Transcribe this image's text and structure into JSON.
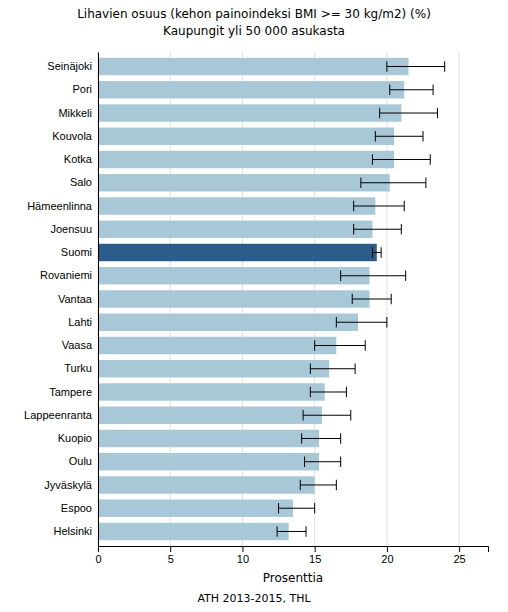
{
  "chart_data": {
    "type": "bar",
    "orientation": "horizontal",
    "title": "Lihavien osuus (kehon painoindeksi BMI >= 30 kg/m2) (%)",
    "subtitle": "Kaupungit yli 50 000 asukasta",
    "xlabel": "Prosenttia",
    "annotations": [
      "ATH 2013-2015, THL"
    ],
    "categories": [
      "Seinäjoki",
      "Pori",
      "Mikkeli",
      "Kouvola",
      "Kotka",
      "Salo",
      "Hämeenlinna",
      "Joensuu",
      "Suomi",
      "Rovaniemi",
      "Vantaa",
      "Lahti",
      "Vaasa",
      "Turku",
      "Tampere",
      "Lappeenranta",
      "Kuopio",
      "Oulu",
      "Jyväskylä",
      "Espoo",
      "Helsinki"
    ],
    "values": [
      21.5,
      21.2,
      21.0,
      20.5,
      20.5,
      20.2,
      19.2,
      19.0,
      19.3,
      18.8,
      18.8,
      18.0,
      16.5,
      16.0,
      15.7,
      15.5,
      15.3,
      15.3,
      15.0,
      13.5,
      13.2
    ],
    "errors_low": [
      1.5,
      1.0,
      1.5,
      1.3,
      1.5,
      2.0,
      1.5,
      1.3,
      0.3,
      2.0,
      1.2,
      1.5,
      1.5,
      1.3,
      1.0,
      1.3,
      1.2,
      1.0,
      1.0,
      1.0,
      0.8
    ],
    "errors_high": [
      2.5,
      2.0,
      2.5,
      2.0,
      2.5,
      2.5,
      2.0,
      2.0,
      0.3,
      2.5,
      1.5,
      2.0,
      2.0,
      1.8,
      1.5,
      2.0,
      1.5,
      1.5,
      1.5,
      1.5,
      1.2
    ],
    "colors": [
      "#a8c8d8",
      "#a8c8d8",
      "#a8c8d8",
      "#a8c8d8",
      "#a8c8d8",
      "#a8c8d8",
      "#a8c8d8",
      "#a8c8d8",
      "#2b5c8a",
      "#a8c8d8",
      "#a8c8d8",
      "#a8c8d8",
      "#a8c8d8",
      "#a8c8d8",
      "#a8c8d8",
      "#a8c8d8",
      "#a8c8d8",
      "#a8c8d8",
      "#a8c8d8",
      "#a8c8d8",
      "#a8c8d8"
    ],
    "xlim": [
      0,
      27
    ],
    "xticks": [
      0,
      5,
      10,
      15,
      20,
      25
    ],
    "grid": true
  }
}
